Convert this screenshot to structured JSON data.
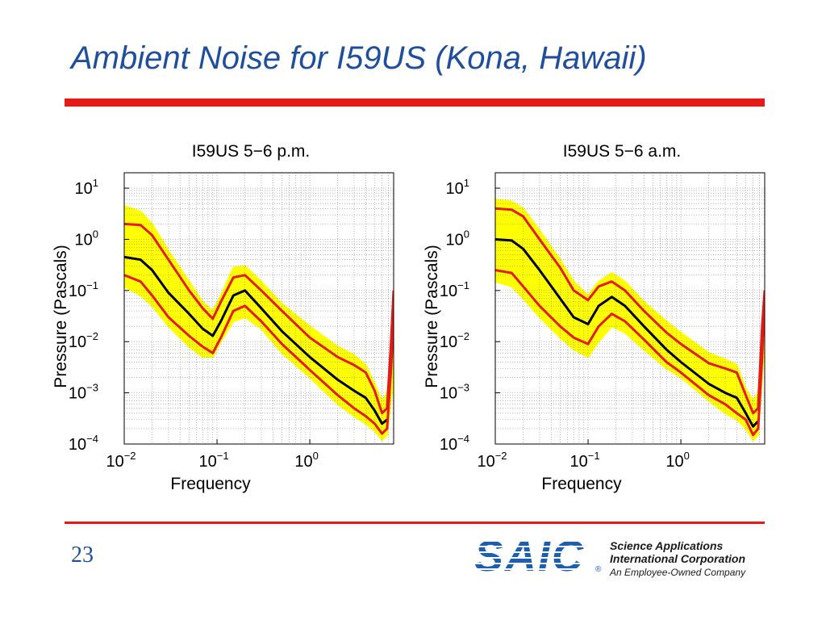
{
  "slide": {
    "title": "Ambient Noise for I59US (Kona, Hawaii)",
    "page_number": "23",
    "accent_color": "#e41b17",
    "title_color": "#1f4e9c"
  },
  "logo": {
    "mark": "SAIC",
    "registered": "®",
    "line1": "Science Applications",
    "line2": "International Corporation",
    "line3": "An Employee-Owned Company",
    "color": "#1a5fb4"
  },
  "chart_data": [
    {
      "type": "line",
      "title": "I59US  5−6 p.m.",
      "xlabel": "Frequency",
      "ylabel": "Pressure (Pascals)",
      "x_scale": "log",
      "y_scale": "log",
      "xlim": [
        0.01,
        8
      ],
      "ylim": [
        0.0001,
        20
      ],
      "grid": true,
      "x_ticks": [
        {
          "base": "10",
          "exp": "−2",
          "value": 0.01
        },
        {
          "base": "10",
          "exp": "−1",
          "value": 0.1
        },
        {
          "base": "10",
          "exp": "0",
          "value": 1
        }
      ],
      "y_ticks": [
        {
          "base": "10",
          "exp": "−4",
          "value": 0.0001
        },
        {
          "base": "10",
          "exp": "−3",
          "value": 0.001
        },
        {
          "base": "10",
          "exp": "−2",
          "value": 0.01
        },
        {
          "base": "10",
          "exp": "−1",
          "value": 0.1
        },
        {
          "base": "10",
          "exp": "0",
          "value": 1
        },
        {
          "base": "10",
          "exp": "1",
          "value": 10
        }
      ],
      "band_color": "#ffff00",
      "band_upper": [
        [
          0.01,
          4.5
        ],
        [
          0.015,
          3.5
        ],
        [
          0.02,
          2.0
        ],
        [
          0.03,
          0.6
        ],
        [
          0.05,
          0.15
        ],
        [
          0.07,
          0.06
        ],
        [
          0.09,
          0.04
        ],
        [
          0.11,
          0.08
        ],
        [
          0.15,
          0.28
        ],
        [
          0.2,
          0.3
        ],
        [
          0.3,
          0.15
        ],
        [
          0.5,
          0.055
        ],
        [
          1,
          0.02
        ],
        [
          2,
          0.008
        ],
        [
          3,
          0.0055
        ],
        [
          4,
          0.0035
        ],
        [
          5,
          0.0015
        ],
        [
          6,
          0.0007
        ],
        [
          6.8,
          0.001
        ],
        [
          8,
          0.02
        ]
      ],
      "band_lower": [
        [
          0.01,
          0.12
        ],
        [
          0.015,
          0.08
        ],
        [
          0.02,
          0.05
        ],
        [
          0.03,
          0.02
        ],
        [
          0.05,
          0.008
        ],
        [
          0.07,
          0.005
        ],
        [
          0.09,
          0.005
        ],
        [
          0.11,
          0.01
        ],
        [
          0.15,
          0.025
        ],
        [
          0.2,
          0.03
        ],
        [
          0.3,
          0.018
        ],
        [
          0.5,
          0.006
        ],
        [
          1,
          0.002
        ],
        [
          2,
          0.0006
        ],
        [
          3,
          0.00035
        ],
        [
          4,
          0.00025
        ],
        [
          5,
          0.00018
        ],
        [
          6,
          0.00012
        ],
        [
          6.8,
          0.00015
        ],
        [
          8,
          0.002
        ]
      ],
      "series": [
        {
          "color": "#e41b17",
          "values": [
            [
              0.01,
              2.0
            ],
            [
              0.015,
              1.9
            ],
            [
              0.02,
              1.2
            ],
            [
              0.03,
              0.4
            ],
            [
              0.05,
              0.1
            ],
            [
              0.07,
              0.045
            ],
            [
              0.09,
              0.028
            ],
            [
              0.11,
              0.06
            ],
            [
              0.15,
              0.18
            ],
            [
              0.2,
              0.2
            ],
            [
              0.3,
              0.1
            ],
            [
              0.5,
              0.04
            ],
            [
              1,
              0.012
            ],
            [
              2,
              0.005
            ],
            [
              3,
              0.0035
            ],
            [
              4,
              0.0025
            ],
            [
              5,
              0.0011
            ],
            [
              6,
              0.0004
            ],
            [
              6.8,
              0.0005
            ],
            [
              7.5,
              0.01
            ],
            [
              8,
              0.1
            ]
          ]
        },
        {
          "color": "#000000",
          "values": [
            [
              0.01,
              0.45
            ],
            [
              0.015,
              0.4
            ],
            [
              0.02,
              0.25
            ],
            [
              0.03,
              0.09
            ],
            [
              0.05,
              0.035
            ],
            [
              0.07,
              0.018
            ],
            [
              0.09,
              0.013
            ],
            [
              0.11,
              0.025
            ],
            [
              0.15,
              0.08
            ],
            [
              0.2,
              0.1
            ],
            [
              0.3,
              0.045
            ],
            [
              0.5,
              0.016
            ],
            [
              1,
              0.005
            ],
            [
              2,
              0.0018
            ],
            [
              3,
              0.0011
            ],
            [
              4,
              0.0008
            ],
            [
              5,
              0.00045
            ],
            [
              6,
              0.00025
            ],
            [
              6.8,
              0.0003
            ]
          ]
        },
        {
          "color": "#e41b17",
          "values": [
            [
              0.01,
              0.2
            ],
            [
              0.015,
              0.15
            ],
            [
              0.02,
              0.08
            ],
            [
              0.03,
              0.03
            ],
            [
              0.05,
              0.013
            ],
            [
              0.07,
              0.008
            ],
            [
              0.09,
              0.006
            ],
            [
              0.11,
              0.012
            ],
            [
              0.15,
              0.04
            ],
            [
              0.2,
              0.05
            ],
            [
              0.3,
              0.025
            ],
            [
              0.5,
              0.009
            ],
            [
              1,
              0.0028
            ],
            [
              2,
              0.0009
            ],
            [
              3,
              0.0005
            ],
            [
              4,
              0.00035
            ],
            [
              5,
              0.00025
            ],
            [
              6,
              0.00016
            ],
            [
              6.8,
              0.0002
            ],
            [
              7.5,
              0.003
            ],
            [
              8,
              0.03
            ]
          ]
        }
      ]
    },
    {
      "type": "line",
      "title": "I59US  5−6 a.m.",
      "xlabel": "Frequency",
      "ylabel": "Pressure (Pascals)",
      "x_scale": "log",
      "y_scale": "log",
      "xlim": [
        0.01,
        8
      ],
      "ylim": [
        0.0001,
        20
      ],
      "grid": true,
      "x_ticks": [
        {
          "base": "10",
          "exp": "−2",
          "value": 0.01
        },
        {
          "base": "10",
          "exp": "−1",
          "value": 0.1
        },
        {
          "base": "10",
          "exp": "0",
          "value": 1
        }
      ],
      "y_ticks": [
        {
          "base": "10",
          "exp": "−4",
          "value": 0.0001
        },
        {
          "base": "10",
          "exp": "−3",
          "value": 0.001
        },
        {
          "base": "10",
          "exp": "−2",
          "value": 0.01
        },
        {
          "base": "10",
          "exp": "−1",
          "value": 0.1
        },
        {
          "base": "10",
          "exp": "0",
          "value": 1
        },
        {
          "base": "10",
          "exp": "1",
          "value": 10
        }
      ],
      "band_color": "#ffff00",
      "band_upper": [
        [
          0.01,
          6.0
        ],
        [
          0.015,
          5.5
        ],
        [
          0.02,
          4.0
        ],
        [
          0.03,
          1.5
        ],
        [
          0.05,
          0.4
        ],
        [
          0.07,
          0.15
        ],
        [
          0.1,
          0.08
        ],
        [
          0.13,
          0.15
        ],
        [
          0.18,
          0.22
        ],
        [
          0.25,
          0.15
        ],
        [
          0.4,
          0.06
        ],
        [
          0.7,
          0.025
        ],
        [
          1,
          0.015
        ],
        [
          2,
          0.006
        ],
        [
          3,
          0.0045
        ],
        [
          4,
          0.0035
        ],
        [
          5,
          0.0012
        ],
        [
          6,
          0.0007
        ],
        [
          6.8,
          0.001
        ],
        [
          8,
          0.1
        ]
      ],
      "band_lower": [
        [
          0.01,
          0.15
        ],
        [
          0.015,
          0.12
        ],
        [
          0.02,
          0.07
        ],
        [
          0.03,
          0.03
        ],
        [
          0.05,
          0.012
        ],
        [
          0.07,
          0.007
        ],
        [
          0.1,
          0.005
        ],
        [
          0.13,
          0.01
        ],
        [
          0.18,
          0.02
        ],
        [
          0.25,
          0.015
        ],
        [
          0.4,
          0.007
        ],
        [
          0.7,
          0.003
        ],
        [
          1,
          0.002
        ],
        [
          2,
          0.0007
        ],
        [
          3,
          0.0004
        ],
        [
          4,
          0.0003
        ],
        [
          5,
          0.0002
        ],
        [
          6,
          0.00012
        ],
        [
          6.8,
          0.00015
        ],
        [
          8,
          0.01
        ]
      ],
      "series": [
        {
          "color": "#e41b17",
          "values": [
            [
              0.01,
              4.0
            ],
            [
              0.015,
              3.8
            ],
            [
              0.02,
              2.8
            ],
            [
              0.03,
              1.0
            ],
            [
              0.05,
              0.28
            ],
            [
              0.07,
              0.1
            ],
            [
              0.1,
              0.065
            ],
            [
              0.13,
              0.12
            ],
            [
              0.18,
              0.15
            ],
            [
              0.25,
              0.1
            ],
            [
              0.4,
              0.04
            ],
            [
              0.7,
              0.015
            ],
            [
              1,
              0.009
            ],
            [
              2,
              0.0038
            ],
            [
              3,
              0.003
            ],
            [
              4,
              0.0025
            ],
            [
              5,
              0.0009
            ],
            [
              6,
              0.0004
            ],
            [
              6.8,
              0.0005
            ],
            [
              7.5,
              0.02
            ],
            [
              8,
              0.1
            ]
          ]
        },
        {
          "color": "#000000",
          "values": [
            [
              0.01,
              1.0
            ],
            [
              0.015,
              0.95
            ],
            [
              0.02,
              0.65
            ],
            [
              0.03,
              0.25
            ],
            [
              0.05,
              0.07
            ],
            [
              0.07,
              0.03
            ],
            [
              0.1,
              0.022
            ],
            [
              0.13,
              0.05
            ],
            [
              0.18,
              0.075
            ],
            [
              0.25,
              0.05
            ],
            [
              0.4,
              0.02
            ],
            [
              0.7,
              0.007
            ],
            [
              1,
              0.004
            ],
            [
              2,
              0.0015
            ],
            [
              3,
              0.001
            ],
            [
              4,
              0.0008
            ],
            [
              5,
              0.0004
            ],
            [
              6,
              0.00022
            ],
            [
              6.8,
              0.00028
            ]
          ]
        },
        {
          "color": "#e41b17",
          "values": [
            [
              0.01,
              0.25
            ],
            [
              0.015,
              0.22
            ],
            [
              0.02,
              0.12
            ],
            [
              0.03,
              0.05
            ],
            [
              0.05,
              0.02
            ],
            [
              0.07,
              0.012
            ],
            [
              0.1,
              0.009
            ],
            [
              0.13,
              0.02
            ],
            [
              0.18,
              0.035
            ],
            [
              0.25,
              0.025
            ],
            [
              0.4,
              0.011
            ],
            [
              0.7,
              0.004
            ],
            [
              1,
              0.0025
            ],
            [
              2,
              0.0009
            ],
            [
              3,
              0.0006
            ],
            [
              4,
              0.0004
            ],
            [
              5,
              0.0003
            ],
            [
              6,
              0.00015
            ],
            [
              6.8,
              0.0002
            ],
            [
              7.5,
              0.005
            ],
            [
              8,
              0.08
            ]
          ]
        }
      ]
    }
  ]
}
